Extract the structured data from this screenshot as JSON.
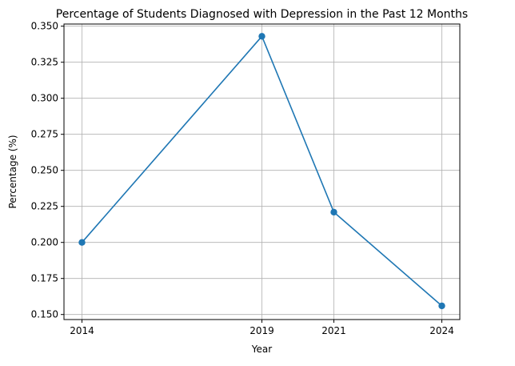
{
  "chart_data": {
    "type": "line",
    "title": "Percentage of Students Diagnosed with Depression in the Past 12 Months",
    "xlabel": "Year",
    "ylabel": "Percentage (%)",
    "x": [
      2014,
      2019,
      2021,
      2024
    ],
    "x_tick_labels": [
      "2014",
      "2019",
      "2021",
      "2024"
    ],
    "xlim": [
      2013.5,
      2024.5
    ],
    "ylim": [
      0.1465,
      0.3515
    ],
    "y_ticks": [
      0.15,
      0.175,
      0.2,
      0.225,
      0.25,
      0.275,
      0.3,
      0.325,
      0.35
    ],
    "y_tick_labels": [
      "0.150",
      "0.175",
      "0.200",
      "0.225",
      "0.250",
      "0.275",
      "0.300",
      "0.325",
      "0.350"
    ],
    "series": [
      {
        "values": [
          0.2,
          0.343,
          0.221,
          0.156
        ],
        "color": "#1f77b4",
        "marker": "circle"
      }
    ],
    "grid": true,
    "legend": "none"
  }
}
